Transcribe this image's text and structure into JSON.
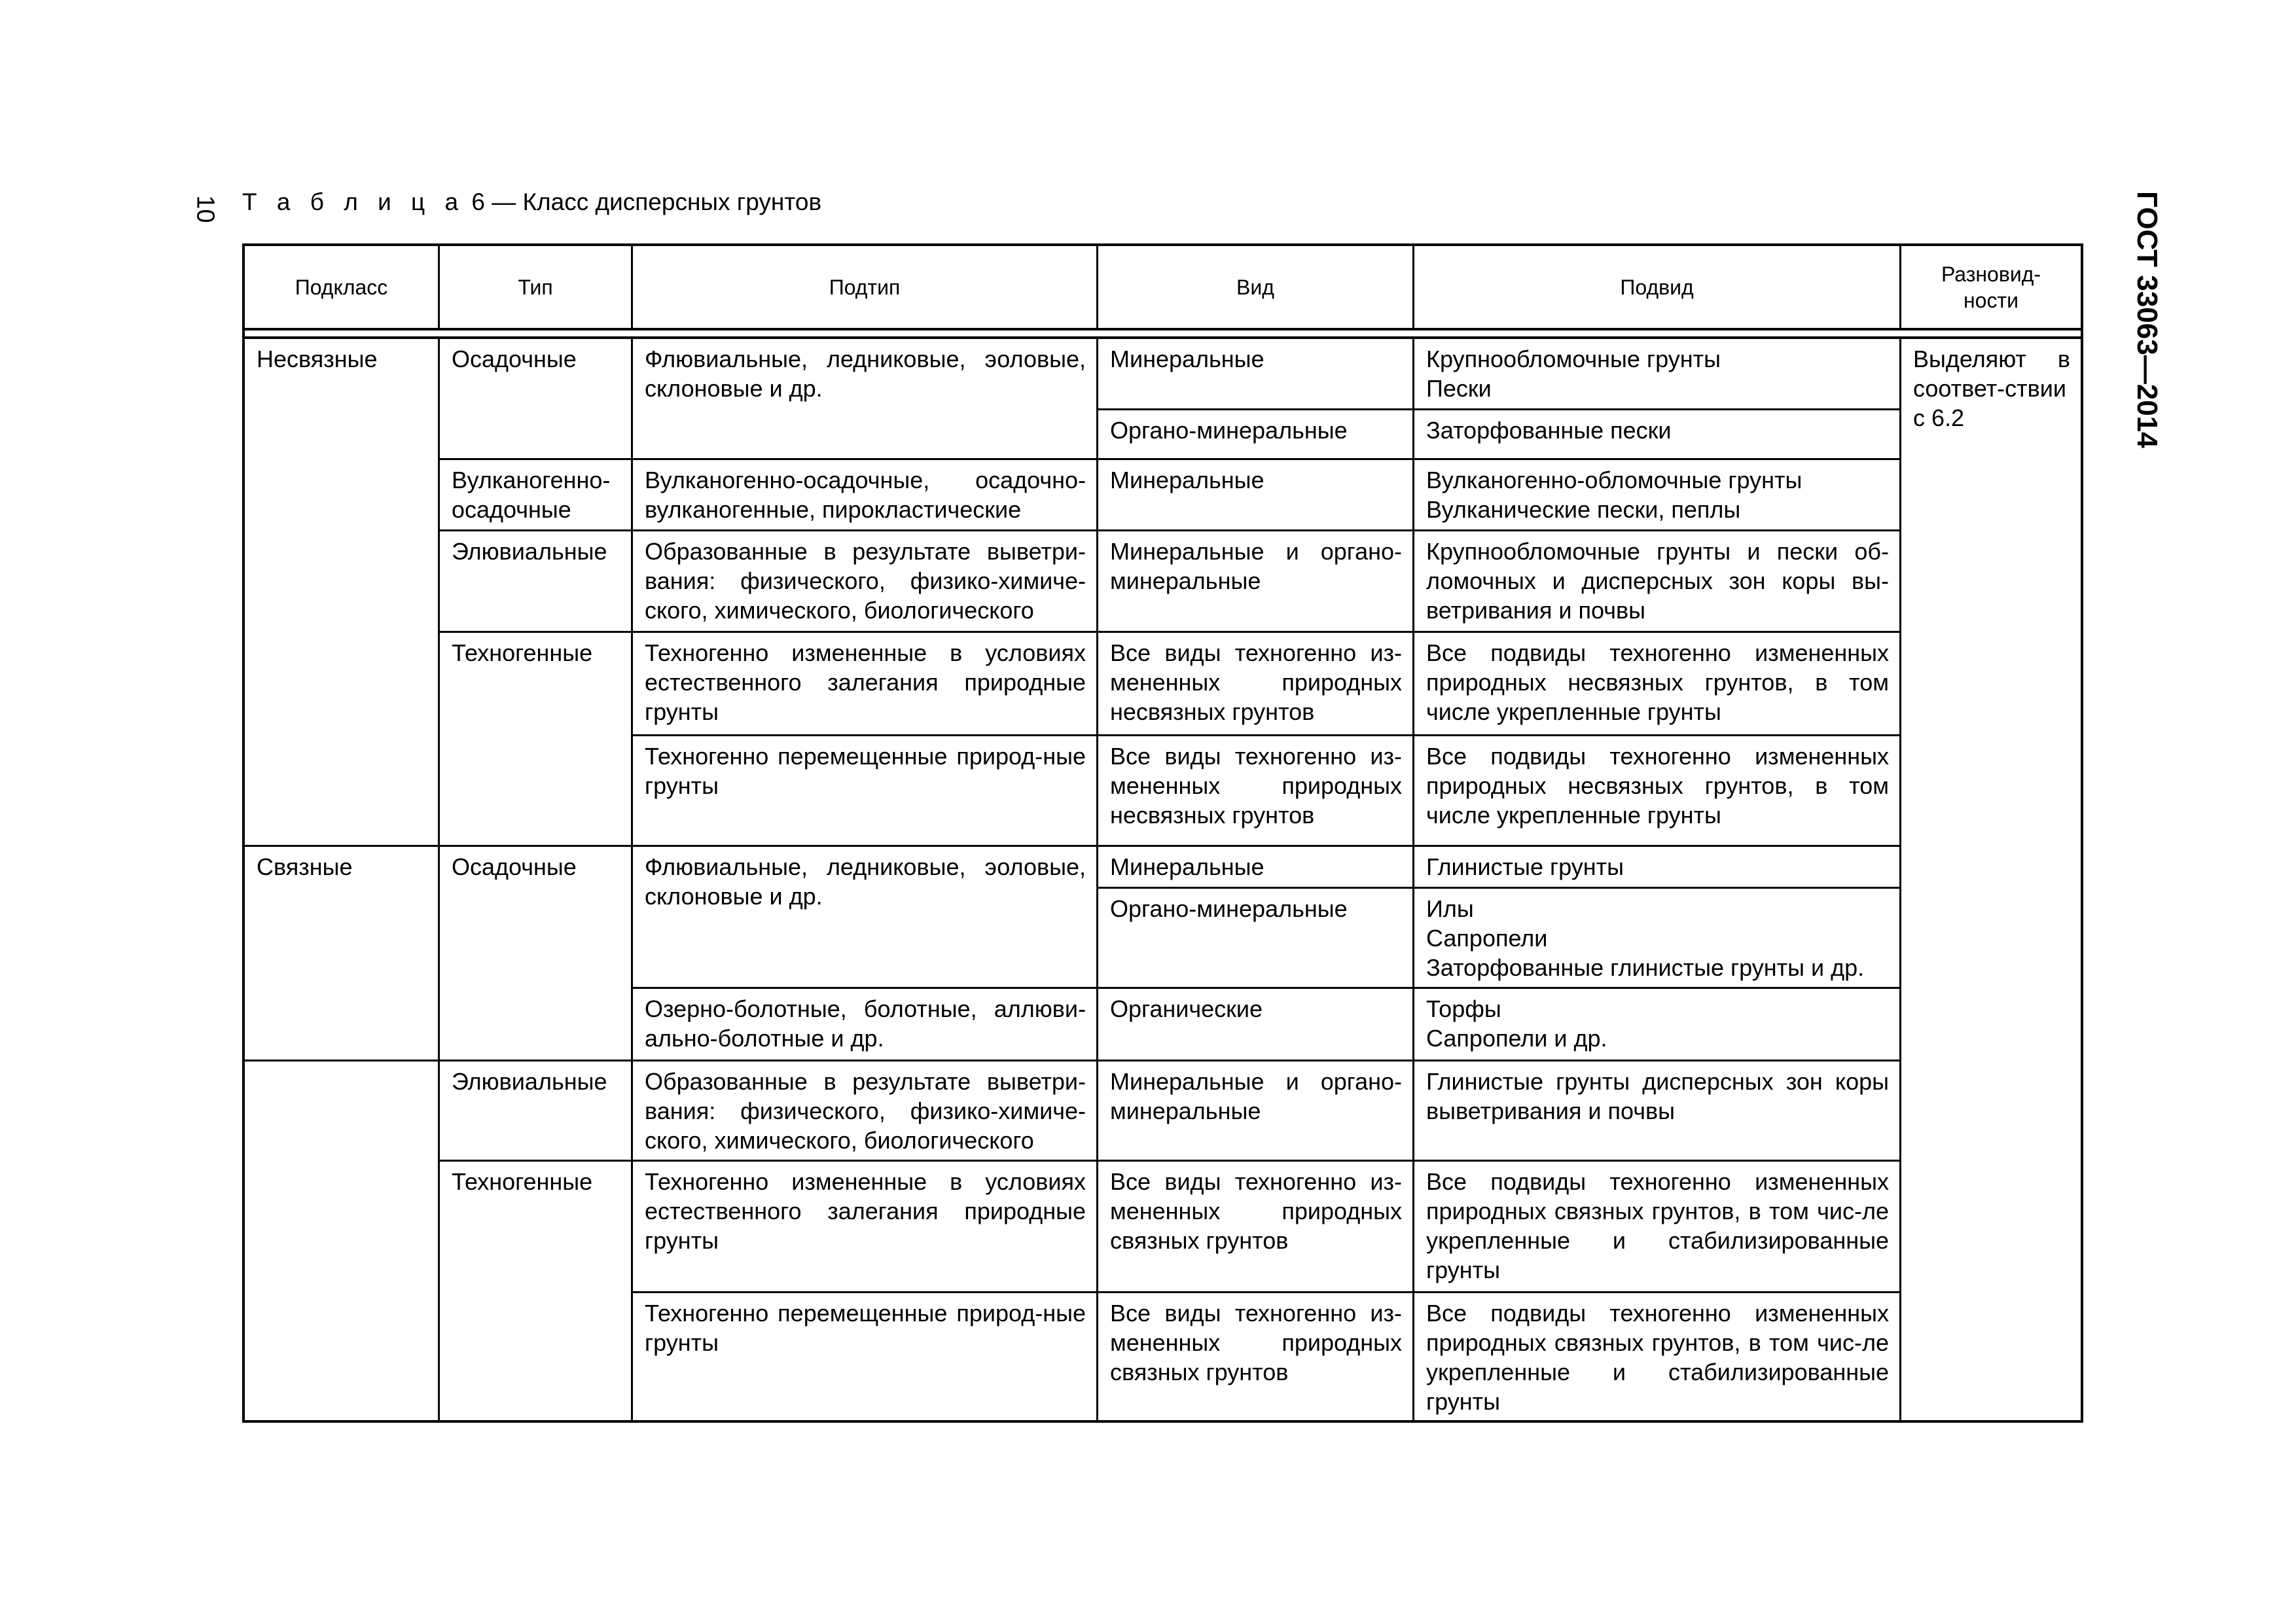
{
  "page_number": "10",
  "caption": {
    "label": "Т а б л и ц а",
    "text": " 6 — Класс дисперсных грунтов"
  },
  "standard_id": "ГОСТ 33063—2014",
  "headers": [
    "Подкласс",
    "Тип",
    "Подтип",
    "Вид",
    "Подвид",
    "Разновид-\nности"
  ],
  "razn_text": "Выделяют в соответ-ствии с 6.2",
  "cells": {
    "podklass_1": "Несвязные",
    "podklass_2": "Связные",
    "tip_1": "Осадочные",
    "tip_2": "Вулканогенно-\nосадочные",
    "tip_3": "Элювиальные",
    "tip_4": "Техногенные",
    "tip_5": "Осадочные",
    "tip_6": "Элювиальные",
    "tip_7": "Техногенные",
    "podtip_1": "Флювиальные, ледниковые, эоловые, склоновые и др.",
    "podtip_2": "Вулканогенно-осадочные, осадочно-вулканогенные, пирокластические",
    "podtip_3": "Образованные в результате выветри-вания: физического, физико-химиче-ского, химического, биологического",
    "podtip_4": "Техногенно измененные в условиях естественного залегания природные грунты",
    "podtip_5": "Техногенно перемещенные природ-ные грунты",
    "podtip_6": "Флювиальные, ледниковые, эоловые, склоновые и др.",
    "podtip_7": "Озерно-болотные, болотные, аллюви-ально-болотные и др.",
    "podtip_8": "Образованные в результате выветри-вания: физического, физико-химиче-ского, химического, биологического",
    "podtip_9": "Техногенно измененные в условиях естественного залегания природные грунты",
    "podtip_10": "Техногенно перемещенные природ-ные грунты",
    "vid_1": "Минеральные",
    "vid_2": "Органо-минеральные",
    "vid_3": "Минеральные",
    "vid_4": "Минеральные и органо-минеральные",
    "vid_5": "Все виды техногенно из-мененных природных несвязных грунтов",
    "vid_6": "Все виды техногенно из-мененных природных несвязных грунтов",
    "vid_7": "Минеральные",
    "vid_8": "Органо-минеральные",
    "vid_9": "Органические",
    "vid_10": "Минеральные и органо-минеральные",
    "vid_11": "Все виды техногенно из-мененных природных связных грунтов",
    "vid_12": "Все виды техногенно из-мененных природных связных грунтов",
    "podvid_1": "Крупнообломочные грунты\nПески",
    "podvid_2": "Заторфованные пески",
    "podvid_3": "Вулканогенно-обломочные грунты\nВулканические пески, пеплы",
    "podvid_4": "Крупнообломочные грунты и пески об-ломочных и дисперсных зон коры вы-ветривания и почвы",
    "podvid_5": "Все подвиды техногенно измененных природных несвязных грунтов, в том числе укрепленные грунты",
    "podvid_6": "Все подвиды техногенно измененных природных несвязных грунтов, в том числе укрепленные грунты",
    "podvid_7": "Глинистые грунты",
    "podvid_8": "Илы\nСапропели\nЗаторфованные глинистые грунты и др.",
    "podvid_9": "Торфы\nСапропели и др.",
    "podvid_10": "Глинистые грунты дисперсных зон коры выветривания и почвы",
    "podvid_11": "Все подвиды техногенно измененных природных связных грунтов, в том чис-ле укрепленные и стабилизированные грунты",
    "podvid_12": "Все подвиды техногенно измененных природных связных грунтов, в том чис-ле укрепленные и стабилизированные грунты"
  }
}
